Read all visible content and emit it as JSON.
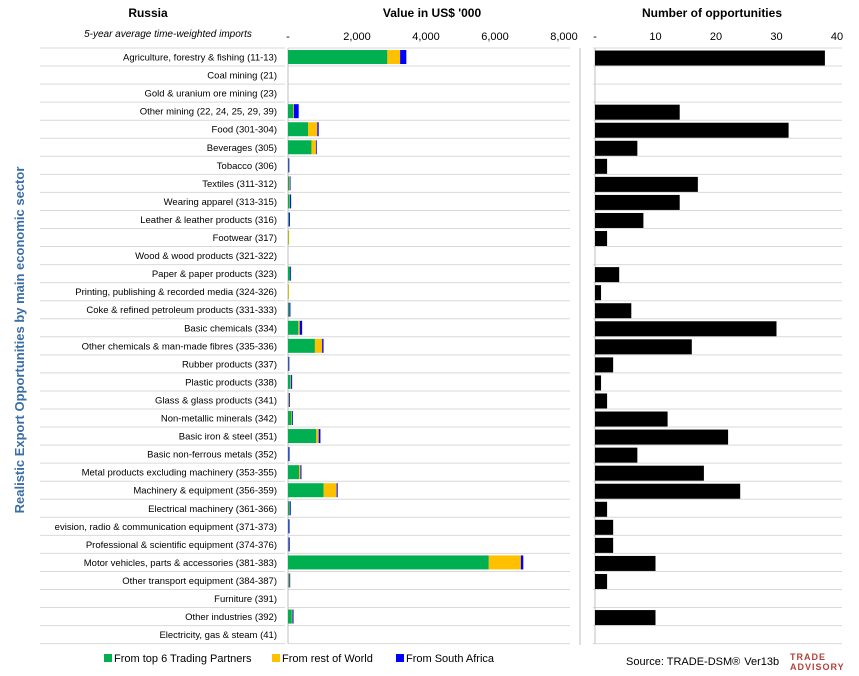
{
  "header": {
    "country": "Russia",
    "subtitle": "5-year average time-weighted imports",
    "value_title": "Value in US$ '000",
    "count_title": "Number of opportunities"
  },
  "ylabel": "Realistic Export Opportunities by main economic sector",
  "source": "Source: TRADE-DSM",
  "source_mark": "®",
  "version": "Ver13b",
  "logo": {
    "line1": "TRADE",
    "line2": "ADVISORY"
  },
  "colors": {
    "top6": "#00b050",
    "rest": "#ffc000",
    "sa": "#0000ff",
    "count": "#000000",
    "grid": "#d9d9d9"
  },
  "chart_data": [
    {
      "type": "bar",
      "orientation": "horizontal",
      "stacked": true,
      "title": "Value in US$ '000",
      "xlim": [
        0,
        8000
      ],
      "ticks": [
        {
          "value": 0,
          "label": "-"
        },
        {
          "value": 2000,
          "label": "2,000"
        },
        {
          "value": 4000,
          "label": "4,000"
        },
        {
          "value": 6000,
          "label": "6,000"
        },
        {
          "value": 8000,
          "label": "8,000"
        }
      ],
      "categories": [
        "Agriculture, forestry & fishing (11-13)",
        "Coal mining (21)",
        "Gold & uranium ore mining (23)",
        "Other mining (22, 24, 25, 29, 39)",
        "Food (301-304)",
        "Beverages (305)",
        "Tobacco (306)",
        "Textiles (311-312)",
        "Wearing apparel (313-315)",
        "Leather & leather products (316)",
        "Footwear (317)",
        "Wood & wood products (321-322)",
        "Paper & paper products (323)",
        "Printing, publishing & recorded media (324-326)",
        "Coke & refined petroleum products (331-333)",
        "Basic chemicals (334)",
        "Other chemicals & man-made fibres (335-336)",
        "Rubber products (337)",
        "Plastic products (338)",
        "Glass & glass products (341)",
        "Non-metallic minerals (342)",
        "Basic iron & steel (351)",
        "Basic non-ferrous metals (352)",
        "Metal products excluding machinery (353-355)",
        "Machinery & equipment (356-359)",
        "Electrical machinery (361-366)",
        "evision, radio & communication equipment (371-373)",
        "Professional & scientific equipment (374-376)",
        "Motor vehicles, parts & accessories (381-383)",
        "Other transport equipment (384-387)",
        "Furniture (391)",
        "Other industries (392)",
        "Electricity, gas & steam (41)"
      ],
      "series": [
        {
          "name": "From top 6 Trading Partners",
          "color": "#00b050",
          "values": [
            2880,
            0,
            0,
            150,
            580,
            680,
            10,
            30,
            50,
            20,
            10,
            0,
            60,
            5,
            30,
            300,
            780,
            10,
            70,
            10,
            100,
            820,
            10,
            320,
            1030,
            40,
            10,
            10,
            5820,
            20,
            0,
            110,
            0
          ]
        },
        {
          "name": "From rest of World",
          "color": "#ffc000",
          "values": [
            370,
            0,
            0,
            20,
            270,
            130,
            5,
            20,
            10,
            5,
            10,
            0,
            5,
            10,
            10,
            40,
            210,
            5,
            20,
            20,
            20,
            70,
            5,
            40,
            380,
            10,
            5,
            10,
            930,
            20,
            0,
            20,
            0
          ]
        },
        {
          "name": "From South Africa",
          "color": "#0000ff",
          "values": [
            180,
            0,
            0,
            140,
            40,
            20,
            20,
            20,
            30,
            30,
            0,
            0,
            20,
            0,
            30,
            70,
            40,
            20,
            30,
            10,
            20,
            50,
            30,
            30,
            30,
            30,
            30,
            30,
            70,
            10,
            0,
            30,
            0
          ]
        }
      ],
      "legend": "bottom"
    },
    {
      "type": "bar",
      "orientation": "horizontal",
      "title": "Number of opportunities",
      "xlim": [
        0,
        40
      ],
      "ticks": [
        {
          "value": 0,
          "label": "-"
        },
        {
          "value": 10,
          "label": "10"
        },
        {
          "value": 20,
          "label": "20"
        },
        {
          "value": 30,
          "label": "30"
        },
        {
          "value": 40,
          "label": "40"
        }
      ],
      "values": [
        38,
        0,
        0,
        14,
        32,
        7,
        2,
        17,
        14,
        8,
        2,
        0,
        4,
        1,
        6,
        30,
        16,
        3,
        1,
        2,
        12,
        22,
        7,
        18,
        24,
        2,
        3,
        3,
        10,
        2,
        0,
        10,
        0
      ]
    }
  ]
}
